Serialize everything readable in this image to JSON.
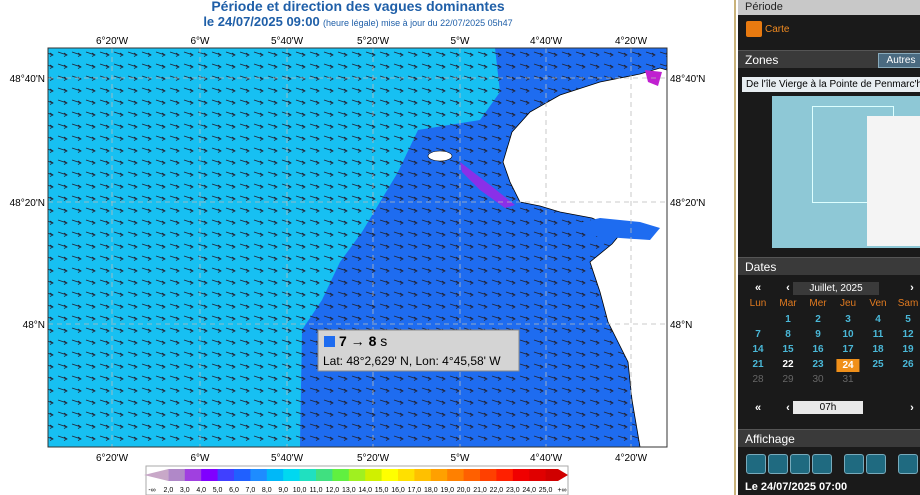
{
  "header": {
    "title": "Période et direction des vagues dominantes",
    "date": "le 24/07/2025 09:00",
    "note": "(heure légale) mise à jour du 22/07/2025 05h47"
  },
  "map": {
    "lon_labels": [
      "6°20'W",
      "6°W",
      "5°40'W",
      "5°20'W",
      "5°W",
      "4°40'W",
      "4°20'W"
    ],
    "lat_labels": [
      "48°40'N",
      "48°20'N",
      "48°N"
    ]
  },
  "legend": {
    "labels": [
      "-∞",
      "2,0",
      "3,0",
      "4,0",
      "5,0",
      "6,0",
      "7,0",
      "8,0",
      "9,0",
      "10,0",
      "11,0",
      "12,0",
      "13,0",
      "14,0",
      "15,0",
      "16,0",
      "17,0",
      "18,0",
      "19,0",
      "20,0",
      "21,0",
      "22,0",
      "23,0",
      "24,0",
      "25,0",
      "+∞"
    ],
    "colors": [
      "#c8a8c8",
      "#b088c8",
      "#a040e0",
      "#8000ff",
      "#4040ff",
      "#2060ff",
      "#1e8cff",
      "#00b8f8",
      "#00d8f0",
      "#20e0c0",
      "#40e080",
      "#60f040",
      "#a0f020",
      "#d0f000",
      "#ffff00",
      "#ffe000",
      "#ffc000",
      "#ffa000",
      "#ff8000",
      "#ff6000",
      "#ff4000",
      "#ff2000",
      "#f00000",
      "#e00000",
      "#d00000"
    ]
  },
  "tooltip": {
    "range": "7 → 8",
    "unit": "s",
    "position": "Lat: 48°2,629' N, Lon: 4°45,58' W"
  },
  "sidebar": {
    "period": {
      "title": "Période",
      "button": "Carte"
    },
    "zones": {
      "title": "Zones",
      "other": "Autres",
      "selected": "De l'île Vierge à la Pointe de Penmarc'h"
    },
    "dates": {
      "title": "Dates",
      "month": "Juillet, 2025",
      "first": "«",
      "prev": "‹",
      "next": "›",
      "last": "»",
      "weekdays": [
        "Lun",
        "Mar",
        "Mer",
        "Jeu",
        "Ven",
        "Sam"
      ],
      "weeks": [
        [
          1,
          2,
          3,
          4,
          5
        ],
        [
          7,
          8,
          9,
          10,
          11,
          12
        ],
        [
          14,
          15,
          16,
          17,
          18,
          19
        ],
        [
          21,
          22,
          23,
          24,
          25,
          26
        ],
        [
          28,
          29,
          30,
          31
        ]
      ],
      "today": 22,
      "selected": 24,
      "hour": "07h"
    },
    "display": {
      "title": "Affichage",
      "status": "Le 24/07/2025 07:00"
    }
  }
}
